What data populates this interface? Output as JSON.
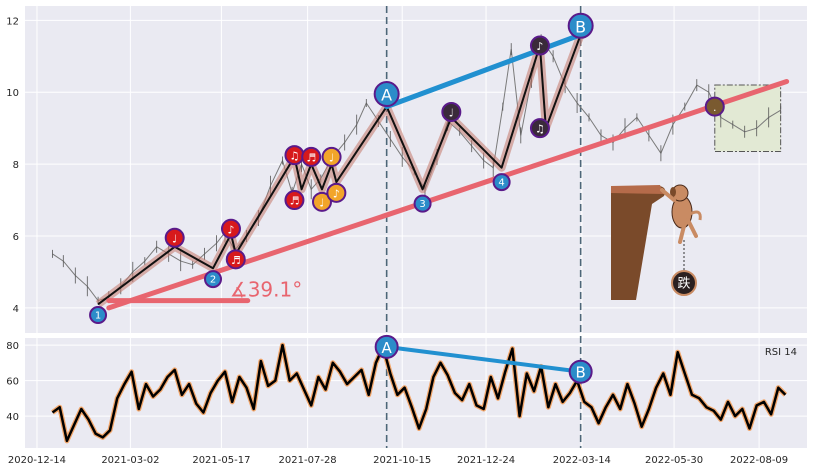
{
  "chart_data": [
    {
      "type": "line",
      "panel": "price",
      "x_tick_labels": [
        "2020-12-14",
        "2021-03-02",
        "2021-05-17",
        "2021-07-28",
        "2021-10-15",
        "2021-12-24",
        "2022-03-14",
        "2022-05-30",
        "2022-08-09"
      ],
      "y_ticks": [
        4,
        6,
        8,
        10,
        12
      ],
      "ylim": [
        3.3,
        12.4
      ],
      "grid": true,
      "price_series": [
        [
          "2020-12-27",
          5.5
        ],
        [
          "2021-01-05",
          5.3
        ],
        [
          "2021-01-15",
          4.9
        ],
        [
          "2021-01-25",
          4.6
        ],
        [
          "2021-02-03",
          4.2
        ],
        [
          "2021-02-12",
          4.3
        ],
        [
          "2021-02-22",
          4.6
        ],
        [
          "2021-03-04",
          5.0
        ],
        [
          "2021-03-14",
          5.3
        ],
        [
          "2021-03-24",
          5.7
        ],
        [
          "2021-04-03",
          5.5
        ],
        [
          "2021-04-13",
          5.3
        ],
        [
          "2021-04-23",
          5.2
        ],
        [
          "2021-05-03",
          5.5
        ],
        [
          "2021-05-13",
          5.8
        ],
        [
          "2021-05-20",
          6.1
        ],
        [
          "2021-05-28",
          5.6
        ],
        [
          "2021-06-07",
          6.0
        ],
        [
          "2021-06-17",
          6.5
        ],
        [
          "2021-06-27",
          7.4
        ],
        [
          "2021-07-07",
          8.1
        ],
        [
          "2021-07-15",
          7.2
        ],
        [
          "2021-07-23",
          8.0
        ],
        [
          "2021-07-31",
          7.3
        ],
        [
          "2021-08-08",
          7.6
        ],
        [
          "2021-08-18",
          8.2
        ],
        [
          "2021-08-28",
          8.6
        ],
        [
          "2021-09-07",
          9.1
        ],
        [
          "2021-09-15",
          9.7
        ],
        [
          "2021-09-25",
          9.2
        ],
        [
          "2021-10-05",
          8.7
        ],
        [
          "2021-10-15",
          8.2
        ],
        [
          "2021-10-25",
          7.8
        ],
        [
          "2021-11-03",
          7.3
        ],
        [
          "2021-11-13",
          8.2
        ],
        [
          "2021-11-22",
          9.2
        ],
        [
          "2021-12-02",
          8.9
        ],
        [
          "2021-12-12",
          8.5
        ],
        [
          "2021-12-22",
          8.1
        ],
        [
          "2021-12-30",
          7.9
        ],
        [
          "2022-01-07",
          9.6
        ],
        [
          "2022-01-14",
          11.2
        ],
        [
          "2022-01-22",
          8.8
        ],
        [
          "2022-01-31",
          10.4
        ],
        [
          "2022-02-08",
          11.5
        ],
        [
          "2022-02-18",
          11.0
        ],
        [
          "2022-02-28",
          10.2
        ],
        [
          "2022-03-10",
          9.7
        ],
        [
          "2022-03-20",
          9.3
        ],
        [
          "2022-03-30",
          8.8
        ],
        [
          "2022-04-09",
          8.6
        ],
        [
          "2022-04-19",
          9.0
        ],
        [
          "2022-04-29",
          9.3
        ],
        [
          "2022-05-09",
          8.8
        ],
        [
          "2022-05-19",
          8.3
        ],
        [
          "2022-05-29",
          9.1
        ],
        [
          "2022-06-08",
          9.6
        ],
        [
          "2022-06-18",
          10.2
        ],
        [
          "2022-06-28",
          10.0
        ],
        [
          "2022-07-08",
          9.3
        ],
        [
          "2022-07-18",
          9.1
        ],
        [
          "2022-07-28",
          8.9
        ],
        [
          "2022-08-07",
          9.0
        ],
        [
          "2022-08-17",
          9.3
        ],
        [
          "2022-08-27",
          9.5
        ]
      ],
      "trend_line": [
        [
          "2021-02-12",
          4.0
        ],
        [
          "2022-09-01",
          10.3
        ]
      ],
      "resistance_line": [
        [
          "2021-10-02",
          9.6
        ],
        [
          "2022-03-13",
          11.6
        ]
      ],
      "angle_text": "∡39.1°",
      "pivot_labels": [
        {
          "id": "p1",
          "label": "1",
          "date": "2021-02-03",
          "value": 3.8,
          "color": "#2b8cc9"
        },
        {
          "id": "p2",
          "label": "2",
          "date": "2021-05-10",
          "value": 4.8,
          "color": "#2b8cc9"
        },
        {
          "id": "p3",
          "label": "3",
          "date": "2021-11-01",
          "value": 6.9,
          "color": "#2b8cc9"
        },
        {
          "id": "p4",
          "label": "4",
          "date": "2022-01-06",
          "value": 7.5,
          "color": "#2b8cc9"
        },
        {
          "id": "pA",
          "label": "A",
          "date": "2021-10-02",
          "value": 9.95,
          "color": "#2b8cc9"
        },
        {
          "id": "pB",
          "label": "B",
          "date": "2022-03-13",
          "value": 11.85,
          "color": "#2b8cc9"
        }
      ],
      "note_markers": [
        {
          "label": "♩",
          "date": "2021-04-08",
          "value": 5.95,
          "color": "#d7191c"
        },
        {
          "label": "♪",
          "date": "2021-05-25",
          "value": 6.2,
          "color": "#d7191c"
        },
        {
          "label": "♬",
          "date": "2021-05-29",
          "value": 5.35,
          "color": "#d7191c"
        },
        {
          "label": "♫",
          "date": "2021-07-17",
          "value": 8.25,
          "color": "#d7191c"
        },
        {
          "label": "♬",
          "date": "2021-07-17",
          "value": 7.0,
          "color": "#d7191c"
        },
        {
          "label": "♬",
          "date": "2021-07-31",
          "value": 8.2,
          "color": "#d7191c"
        },
        {
          "label": "♩",
          "date": "2021-08-17",
          "value": 8.2,
          "color": "#f2a52a"
        },
        {
          "label": "♩",
          "date": "2021-08-09",
          "value": 6.95,
          "color": "#f2a52a"
        },
        {
          "label": "♪",
          "date": "2021-08-21",
          "value": 7.2,
          "color": "#f2a52a"
        },
        {
          "label": "♩",
          "date": "2021-11-25",
          "value": 9.45,
          "color": "#3a2a3a"
        },
        {
          "label": "♪",
          "date": "2022-02-07",
          "value": 11.3,
          "color": "#3a2a3a"
        },
        {
          "label": "♫",
          "date": "2022-02-07",
          "value": 9.0,
          "color": "#3a2a3a"
        },
        {
          "label": ".",
          "date": "2022-07-03",
          "value": 9.6,
          "color": "#7a5a30"
        }
      ],
      "zone_box": {
        "x0": "2022-07-03",
        "x1": "2022-08-27",
        "y0": 8.35,
        "y1": 10.2
      },
      "vlines": [
        "2021-10-02",
        "2022-03-13"
      ],
      "chinese_label": "跌"
    },
    {
      "type": "line",
      "panel": "rsi",
      "legend": "RSI 14",
      "y_ticks": [
        40,
        60,
        80
      ],
      "ylim": [
        22,
        84
      ],
      "rsi_series": [
        [
          "2020-12-27",
          42
        ],
        [
          "2021-01-02",
          45
        ],
        [
          "2021-01-08",
          26
        ],
        [
          "2021-01-14",
          35
        ],
        [
          "2021-01-20",
          44
        ],
        [
          "2021-01-26",
          38
        ],
        [
          "2021-02-01",
          30
        ],
        [
          "2021-02-07",
          28
        ],
        [
          "2021-02-13",
          32
        ],
        [
          "2021-02-19",
          50
        ],
        [
          "2021-02-25",
          58
        ],
        [
          "2021-03-03",
          65
        ],
        [
          "2021-03-09",
          44
        ],
        [
          "2021-03-15",
          58
        ],
        [
          "2021-03-21",
          51
        ],
        [
          "2021-03-27",
          55
        ],
        [
          "2021-04-02",
          62
        ],
        [
          "2021-04-08",
          66
        ],
        [
          "2021-04-14",
          52
        ],
        [
          "2021-04-20",
          58
        ],
        [
          "2021-04-26",
          47
        ],
        [
          "2021-05-02",
          42
        ],
        [
          "2021-05-08",
          53
        ],
        [
          "2021-05-14",
          60
        ],
        [
          "2021-05-20",
          65
        ],
        [
          "2021-05-26",
          48
        ],
        [
          "2021-06-01",
          62
        ],
        [
          "2021-06-07",
          56
        ],
        [
          "2021-06-13",
          44
        ],
        [
          "2021-06-19",
          71
        ],
        [
          "2021-06-25",
          57
        ],
        [
          "2021-07-01",
          60
        ],
        [
          "2021-07-07",
          80
        ],
        [
          "2021-07-13",
          60
        ],
        [
          "2021-07-19",
          64
        ],
        [
          "2021-07-25",
          55
        ],
        [
          "2021-07-31",
          46
        ],
        [
          "2021-08-06",
          62
        ],
        [
          "2021-08-12",
          55
        ],
        [
          "2021-08-18",
          70
        ],
        [
          "2021-08-24",
          65
        ],
        [
          "2021-08-30",
          58
        ],
        [
          "2021-09-05",
          62
        ],
        [
          "2021-09-11",
          66
        ],
        [
          "2021-09-17",
          52
        ],
        [
          "2021-09-23",
          70
        ],
        [
          "2021-09-29",
          79
        ],
        [
          "2021-10-05",
          64
        ],
        [
          "2021-10-11",
          52
        ],
        [
          "2021-10-17",
          56
        ],
        [
          "2021-10-23",
          45
        ],
        [
          "2021-10-29",
          33
        ],
        [
          "2021-11-04",
          44
        ],
        [
          "2021-11-10",
          62
        ],
        [
          "2021-11-16",
          70
        ],
        [
          "2021-11-22",
          63
        ],
        [
          "2021-11-28",
          53
        ],
        [
          "2021-12-04",
          49
        ],
        [
          "2021-12-10",
          58
        ],
        [
          "2021-12-16",
          46
        ],
        [
          "2021-12-22",
          44
        ],
        [
          "2021-12-28",
          62
        ],
        [
          "2022-01-03",
          50
        ],
        [
          "2022-01-09",
          65
        ],
        [
          "2022-01-15",
          78
        ],
        [
          "2022-01-21",
          40
        ],
        [
          "2022-01-27",
          64
        ],
        [
          "2022-02-02",
          54
        ],
        [
          "2022-02-08",
          68
        ],
        [
          "2022-02-14",
          45
        ],
        [
          "2022-02-20",
          58
        ],
        [
          "2022-02-26",
          48
        ],
        [
          "2022-03-04",
          53
        ],
        [
          "2022-03-10",
          60
        ],
        [
          "2022-03-16",
          48
        ],
        [
          "2022-03-22",
          45
        ],
        [
          "2022-03-28",
          36
        ],
        [
          "2022-04-03",
          45
        ],
        [
          "2022-04-09",
          52
        ],
        [
          "2022-04-15",
          44
        ],
        [
          "2022-04-21",
          58
        ],
        [
          "2022-04-27",
          47
        ],
        [
          "2022-05-03",
          34
        ],
        [
          "2022-05-09",
          44
        ],
        [
          "2022-05-15",
          56
        ],
        [
          "2022-05-21",
          64
        ],
        [
          "2022-05-27",
          52
        ],
        [
          "2022-06-02",
          76
        ],
        [
          "2022-06-08",
          64
        ],
        [
          "2022-06-14",
          52
        ],
        [
          "2022-06-20",
          50
        ],
        [
          "2022-06-26",
          45
        ],
        [
          "2022-07-02",
          43
        ],
        [
          "2022-07-08",
          38
        ],
        [
          "2022-07-14",
          48
        ],
        [
          "2022-07-20",
          40
        ],
        [
          "2022-07-26",
          44
        ],
        [
          "2022-08-01",
          33
        ],
        [
          "2022-08-07",
          46
        ],
        [
          "2022-08-13",
          48
        ],
        [
          "2022-08-19",
          41
        ],
        [
          "2022-08-25",
          56
        ],
        [
          "2022-08-31",
          52
        ]
      ],
      "divergence_line": [
        [
          "2021-10-02",
          79
        ],
        [
          "2022-03-13",
          65
        ]
      ],
      "markers": [
        {
          "label": "A",
          "date": "2021-10-02",
          "value": 79,
          "color": "#2b8cc9"
        },
        {
          "label": "B",
          "date": "2022-03-13",
          "value": 65,
          "color": "#2b8cc9"
        }
      ]
    }
  ]
}
